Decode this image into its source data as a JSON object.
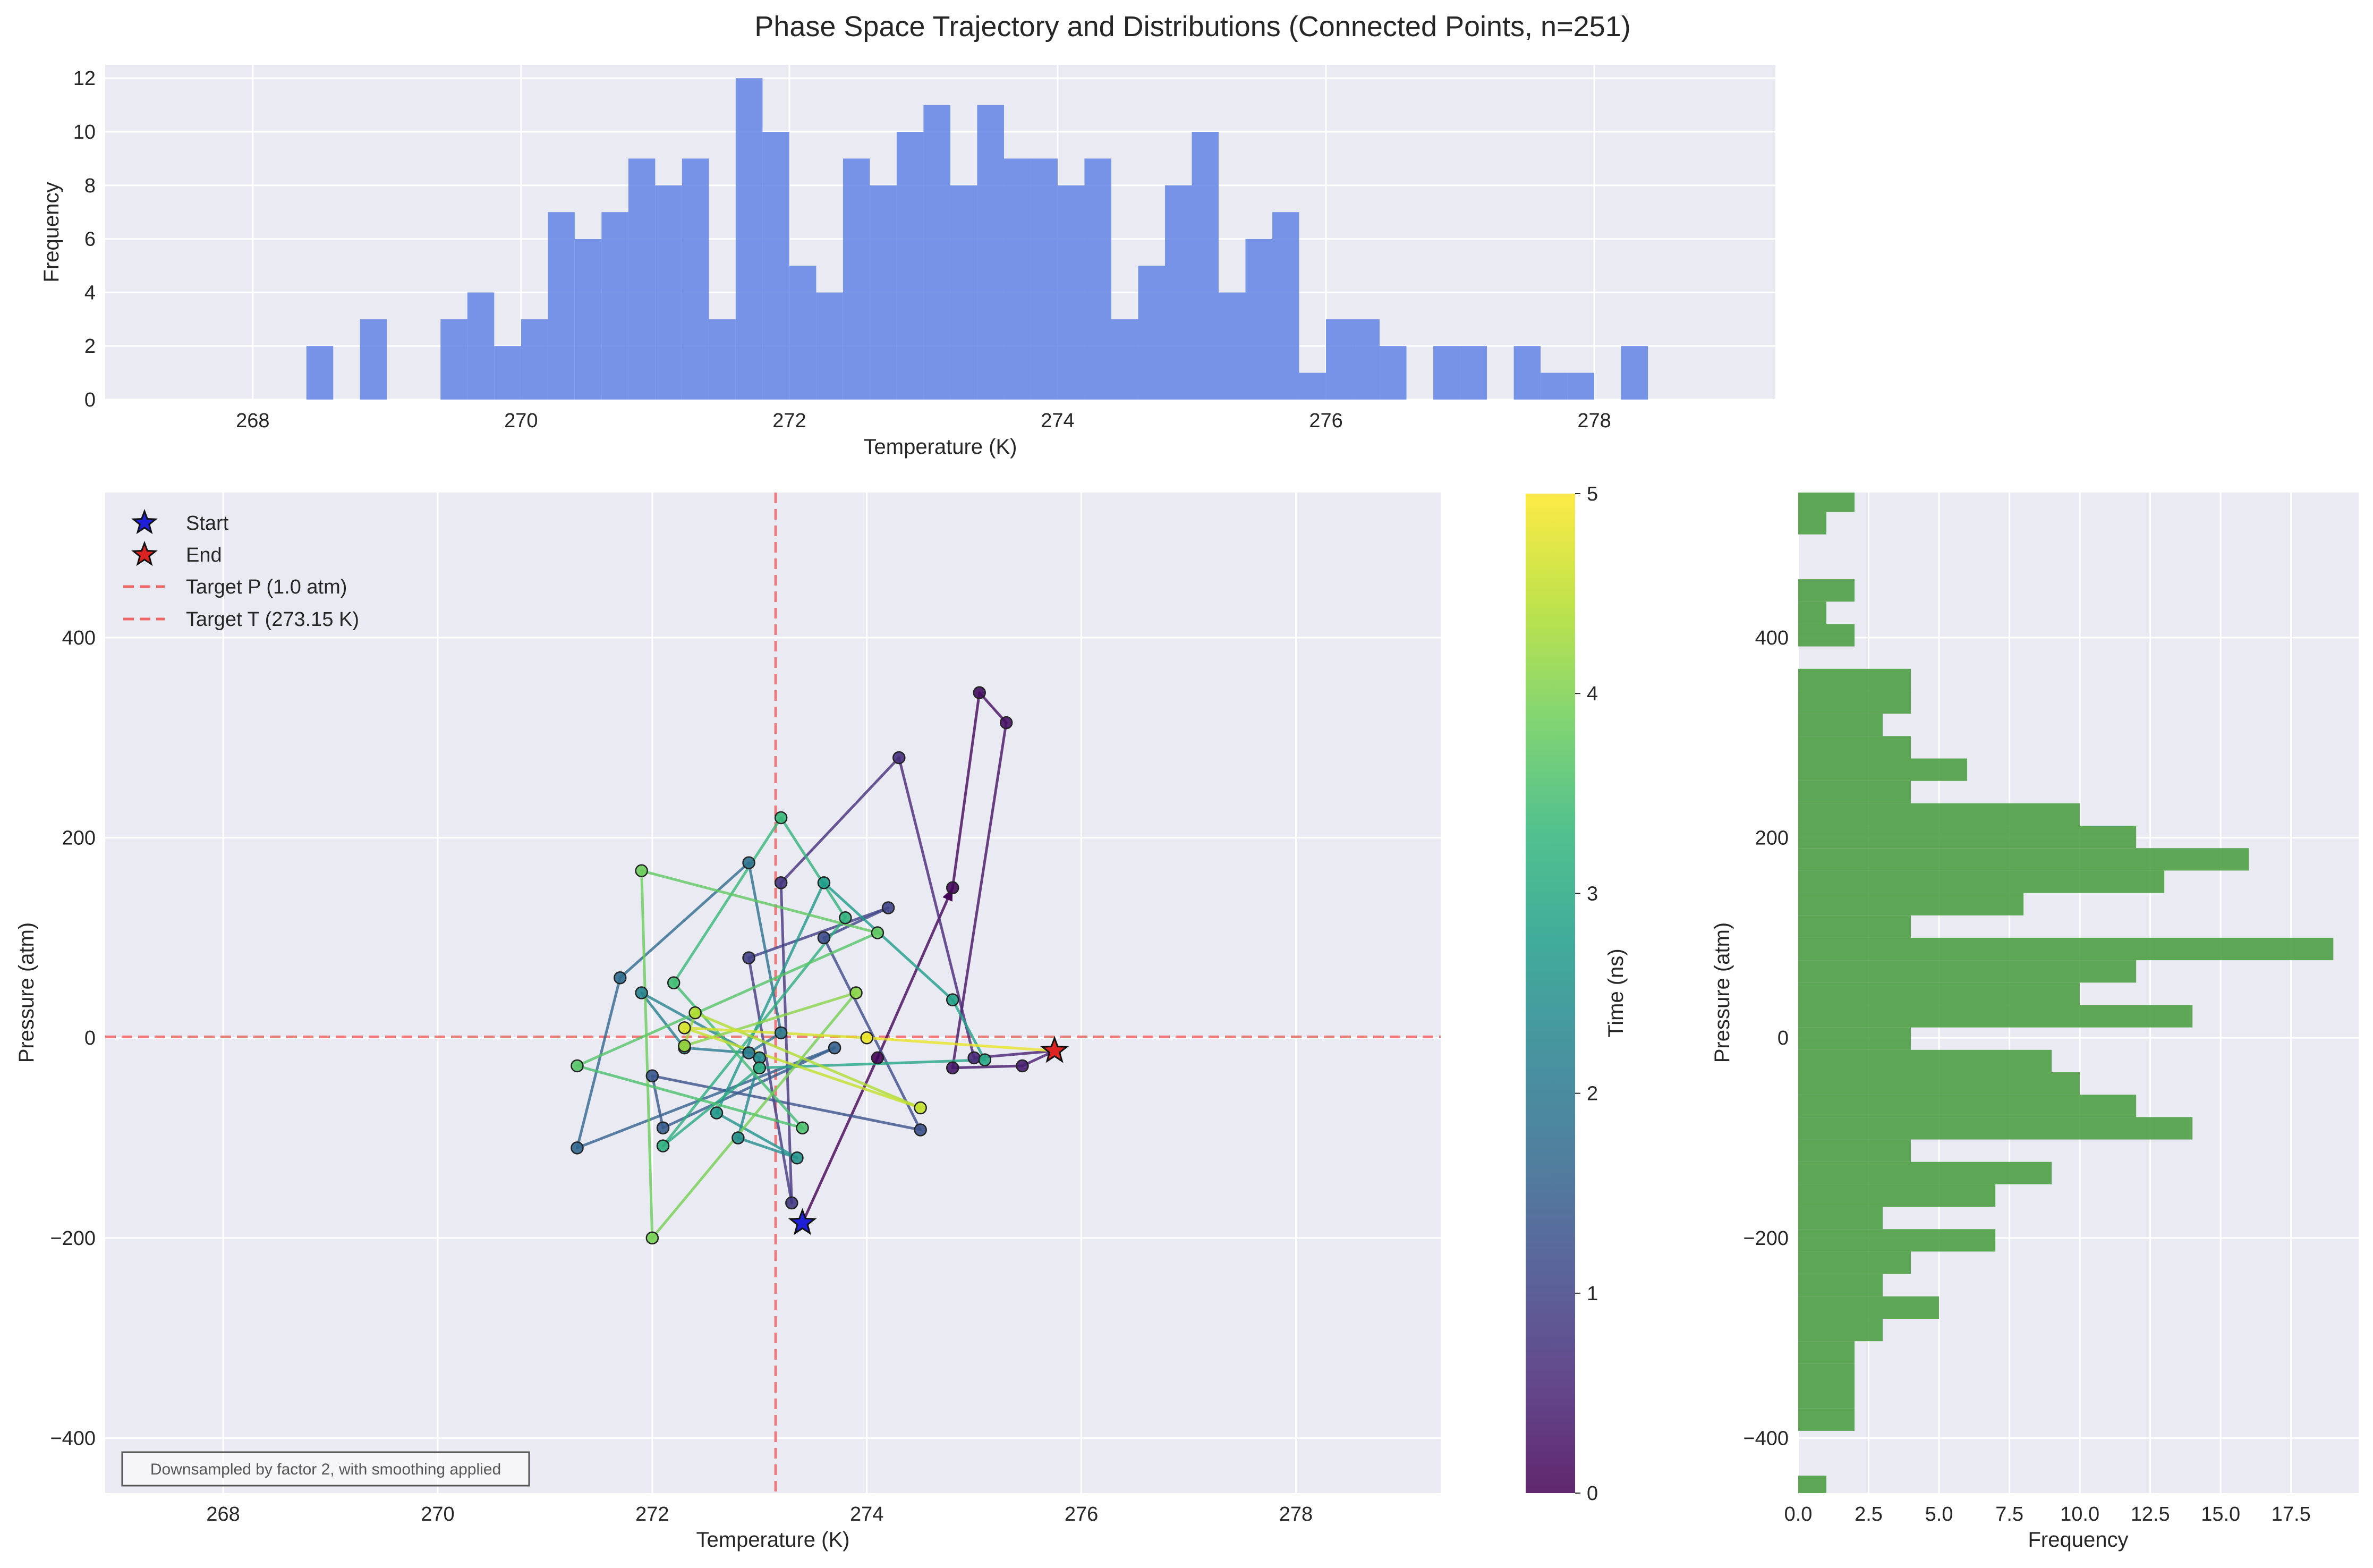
{
  "title": "Phase Space Trajectory and Distributions (Connected Points, n=251)",
  "colors": {
    "temp_hist": "#6a8ae6",
    "pressure_hist": "#4c9f45",
    "target_line": "#ee6666",
    "start_star": "#1f1fd6",
    "end_star": "#dd2222",
    "plot_bg": "#eaeaf2"
  },
  "chart_data": [
    {
      "id": "temperature_histogram",
      "type": "bar",
      "orientation": "vertical",
      "xlabel": "Temperature (K)",
      "ylabel": "Frequency",
      "xlim": [
        266.9,
        279.35
      ],
      "ylim": [
        0,
        12.5
      ],
      "xticks": [
        268,
        270,
        272,
        274,
        276,
        278
      ],
      "yticks": [
        0,
        2,
        4,
        6,
        8,
        10,
        12
      ],
      "grid": true,
      "bin_width": 0.2,
      "bin_starts": [
        268.4,
        268.6,
        268.8,
        269.0,
        269.2,
        269.4,
        269.6,
        269.8,
        270.0,
        270.2,
        270.4,
        270.6,
        270.8,
        271.0,
        271.2,
        271.4,
        271.6,
        271.8,
        272.0,
        272.2,
        272.4,
        272.6,
        272.8,
        273.0,
        273.2,
        273.4,
        273.6,
        273.8,
        274.0,
        274.2,
        274.4,
        274.6,
        274.8,
        275.0,
        275.2,
        275.4,
        275.6,
        275.8,
        276.0,
        276.2,
        276.4,
        276.6,
        276.8,
        277.0,
        277.2,
        277.4,
        277.6,
        277.8,
        278.0,
        278.2,
        278.4
      ],
      "counts": [
        2,
        0,
        3,
        0,
        0,
        3,
        4,
        2,
        3,
        7,
        6,
        7,
        9,
        8,
        9,
        3,
        12,
        10,
        5,
        4,
        9,
        8,
        10,
        11,
        8,
        11,
        9,
        9,
        8,
        9,
        3,
        5,
        8,
        10,
        4,
        6,
        7,
        1,
        3,
        3,
        2,
        0,
        2,
        2,
        0,
        2,
        1,
        1,
        0,
        2,
        0
      ]
    },
    {
      "id": "phase_space_trajectory",
      "type": "line",
      "xlabel": "Temperature (K)",
      "ylabel": "Pressure (atm)",
      "xlim": [
        266.9,
        279.35
      ],
      "ylim": [
        -455,
        545
      ],
      "xticks": [
        268,
        270,
        272,
        274,
        276,
        278
      ],
      "yticks": [
        -400,
        -200,
        0,
        200,
        400
      ],
      "grid": true,
      "legend_position": "upper-left",
      "legend": [
        "Start",
        "End",
        "Target P (1.0 atm)",
        "Target T (273.15 K)"
      ],
      "reference_lines": {
        "pressure": 1.0,
        "temperature": 273.15
      },
      "start": {
        "temperature": 273.4,
        "pressure": -185
      },
      "end": {
        "temperature": 275.75,
        "pressure": -13
      },
      "time_range": [
        0,
        5
      ],
      "trajectory": [
        {
          "t": 0.0,
          "temperature": 273.4,
          "pressure": -185
        },
        {
          "t": 0.05,
          "temperature": 274.1,
          "pressure": -20
        },
        {
          "t": 0.1,
          "temperature": 274.8,
          "pressure": 150
        },
        {
          "t": 0.18,
          "temperature": 275.05,
          "pressure": 345
        },
        {
          "t": 0.25,
          "temperature": 275.3,
          "pressure": 315
        },
        {
          "t": 0.32,
          "temperature": 274.8,
          "pressure": -30
        },
        {
          "t": 0.4,
          "temperature": 275.45,
          "pressure": -28
        },
        {
          "t": 0.45,
          "temperature": 275.75,
          "pressure": -13
        },
        {
          "t": 0.55,
          "temperature": 275.0,
          "pressure": -20
        },
        {
          "t": 0.65,
          "temperature": 274.3,
          "pressure": 280
        },
        {
          "t": 0.75,
          "temperature": 273.2,
          "pressure": 155
        },
        {
          "t": 0.85,
          "temperature": 273.3,
          "pressure": -165
        },
        {
          "t": 0.95,
          "temperature": 272.9,
          "pressure": 80
        },
        {
          "t": 1.05,
          "temperature": 274.2,
          "pressure": 130
        },
        {
          "t": 1.15,
          "temperature": 273.6,
          "pressure": 100
        },
        {
          "t": 1.25,
          "temperature": 274.5,
          "pressure": -92
        },
        {
          "t": 1.35,
          "temperature": 272.0,
          "pressure": -38
        },
        {
          "t": 1.45,
          "temperature": 272.1,
          "pressure": -90
        },
        {
          "t": 1.55,
          "temperature": 273.7,
          "pressure": -10
        },
        {
          "t": 1.65,
          "temperature": 271.3,
          "pressure": -110
        },
        {
          "t": 1.75,
          "temperature": 271.7,
          "pressure": 60
        },
        {
          "t": 1.85,
          "temperature": 272.9,
          "pressure": 175
        },
        {
          "t": 1.95,
          "temperature": 273.2,
          "pressure": 5
        },
        {
          "t": 2.05,
          "temperature": 272.9,
          "pressure": -15
        },
        {
          "t": 2.15,
          "temperature": 272.3,
          "pressure": -10
        },
        {
          "t": 2.25,
          "temperature": 271.9,
          "pressure": 45
        },
        {
          "t": 2.35,
          "temperature": 273.0,
          "pressure": -20
        },
        {
          "t": 2.45,
          "temperature": 272.8,
          "pressure": -100
        },
        {
          "t": 2.55,
          "temperature": 273.35,
          "pressure": -120
        },
        {
          "t": 2.65,
          "temperature": 272.6,
          "pressure": -75
        },
        {
          "t": 2.75,
          "temperature": 273.6,
          "pressure": 155
        },
        {
          "t": 2.85,
          "temperature": 274.8,
          "pressure": 38
        },
        {
          "t": 2.95,
          "temperature": 275.1,
          "pressure": -22
        },
        {
          "t": 3.05,
          "temperature": 273.0,
          "pressure": -30
        },
        {
          "t": 3.15,
          "temperature": 272.1,
          "pressure": -108
        },
        {
          "t": 3.25,
          "temperature": 273.8,
          "pressure": 120
        },
        {
          "t": 3.35,
          "temperature": 273.2,
          "pressure": 220
        },
        {
          "t": 3.45,
          "temperature": 272.2,
          "pressure": 55
        },
        {
          "t": 3.55,
          "temperature": 273.4,
          "pressure": -90
        },
        {
          "t": 3.65,
          "temperature": 271.3,
          "pressure": -28
        },
        {
          "t": 3.75,
          "temperature": 274.1,
          "pressure": 105
        },
        {
          "t": 3.85,
          "temperature": 271.9,
          "pressure": 167
        },
        {
          "t": 3.95,
          "temperature": 272.0,
          "pressure": -200
        },
        {
          "t": 4.1,
          "temperature": 273.9,
          "pressure": 45
        },
        {
          "t": 4.25,
          "temperature": 272.3,
          "pressure": -8
        },
        {
          "t": 4.4,
          "temperature": 272.4,
          "pressure": 25
        },
        {
          "t": 4.55,
          "temperature": 274.5,
          "pressure": -70
        },
        {
          "t": 4.7,
          "temperature": 272.3,
          "pressure": 10
        },
        {
          "t": 4.85,
          "temperature": 274.0,
          "pressure": 0
        },
        {
          "t": 5.0,
          "temperature": 275.75,
          "pressure": -13
        }
      ],
      "annotation": "Downsampled by factor 2, with smoothing applied"
    },
    {
      "id": "time_colorbar",
      "type": "heatmap",
      "label": "Time (ns)",
      "range": [
        0,
        5
      ],
      "ticks": [
        0,
        1,
        2,
        3,
        4,
        5
      ],
      "colormap": [
        "#440154",
        "#482878",
        "#3e4989",
        "#31688e",
        "#26828e",
        "#1f9e89",
        "#35b779",
        "#6ece58",
        "#b5de2b",
        "#fde725"
      ]
    },
    {
      "id": "pressure_histogram",
      "type": "bar",
      "orientation": "horizontal",
      "xlabel": "Frequency",
      "ylabel": "Pressure (atm)",
      "xlim": [
        0,
        19.9
      ],
      "ylim": [
        -455,
        545
      ],
      "xticks": [
        0.0,
        2.5,
        5.0,
        7.5,
        10.0,
        12.5,
        15.0,
        17.5
      ],
      "yticks": [
        -400,
        -200,
        0,
        200,
        400
      ],
      "grid": true,
      "bin_width": 22.4,
      "bin_starts": [
        -460.0,
        -437.6,
        -415.2,
        -392.8,
        -370.4,
        -348.0,
        -325.6,
        -303.2,
        -280.8,
        -258.4,
        -236.0,
        -213.6,
        -191.2,
        -168.8,
        -146.4,
        -124.0,
        -101.6,
        -79.2,
        -56.8,
        -34.4,
        -12.0,
        10.4,
        32.8,
        55.2,
        77.6,
        100.0,
        122.4,
        144.8,
        167.2,
        189.6,
        212.0,
        234.4,
        256.8,
        279.2,
        301.6,
        324.0,
        346.4,
        368.8,
        391.2,
        413.6,
        436.0,
        458.4,
        480.8,
        503.2,
        525.6
      ],
      "counts": [
        1,
        0,
        0,
        2,
        2,
        2,
        2,
        3,
        5,
        3,
        4,
        7,
        3,
        7,
        9,
        4,
        14,
        12,
        10,
        9,
        4,
        14,
        10,
        12,
        19,
        4,
        8,
        13,
        16,
        12,
        10,
        4,
        6,
        4,
        3,
        4,
        4,
        0,
        2,
        1,
        2,
        0,
        0,
        1,
        2
      ]
    }
  ]
}
